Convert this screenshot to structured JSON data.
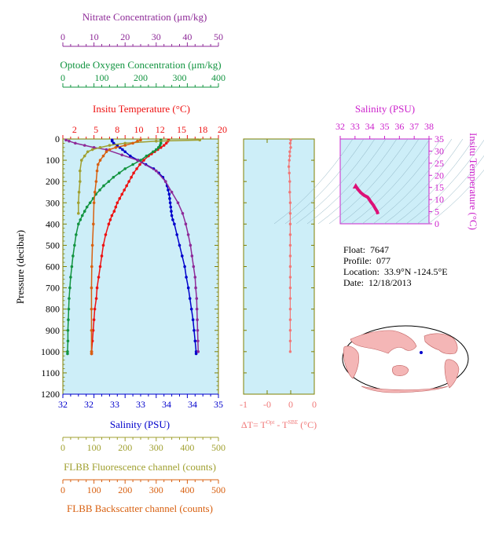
{
  "float_info": {
    "float_label": "Float:",
    "float_value": "7647",
    "profile_label": "Profile:",
    "profile_value": "077",
    "location_label": "Location:",
    "location_value": "33.9°N  -124.5°E",
    "date_label": "Date:",
    "date_value": "12/18/2013"
  },
  "colors": {
    "panel_bg": "#cdeef8",
    "frame": "#808000",
    "temperature": "#ee1111",
    "salinity": "#0000cc",
    "oxygen": "#129440",
    "nitrate": "#8e2a98",
    "fluorescence": "#a0a030",
    "backscatter": "#d86010",
    "delta_t": "#f07878",
    "ts_frame": "#cc22cc",
    "ts_line": "#dd1177"
  },
  "chart_data": [
    {
      "type": "line",
      "title": "",
      "ylabel": "Pressure (decibar)",
      "ylim": [
        1200,
        0
      ],
      "yticks": [
        0,
        100,
        200,
        300,
        400,
        500,
        600,
        700,
        800,
        900,
        1000,
        1100,
        1200
      ],
      "axes": {
        "nitrate": {
          "label": "Nitrate Concentration (μm/kg)",
          "range": [
            0,
            50
          ],
          "ticks": [
            0,
            10,
            20,
            30,
            40,
            50
          ],
          "position": "top"
        },
        "oxygen": {
          "label": "Optode Oxygen Concentration (μm/kg)",
          "range": [
            0,
            400
          ],
          "ticks": [
            0,
            100,
            200,
            300,
            400
          ],
          "position": "top"
        },
        "temperature": {
          "label": "Insitu Temperature (°C)",
          "range": [
            0,
            20
          ],
          "ticks": [
            2,
            5,
            8,
            10,
            12,
            15,
            18,
            20
          ],
          "tick_positions": [
            1.5,
            4.25,
            7,
            9.75,
            12.5,
            15.25,
            18,
            20.5
          ],
          "position": "top"
        },
        "salinity": {
          "label": "Salinity (PSU)",
          "range": [
            32,
            35
          ],
          "ticks": [
            32,
            32.5,
            33,
            33.5,
            34,
            34.5,
            35
          ],
          "tick_labels": [
            "32",
            "32",
            "33",
            "33",
            "34",
            "34",
            "35"
          ],
          "position": "bottom"
        },
        "fluorescence": {
          "label": "FLBB Fluorescence channel (counts)",
          "range": [
            0,
            500
          ],
          "ticks": [
            0,
            100,
            200,
            300,
            400,
            500
          ],
          "position": "bottom"
        },
        "backscatter": {
          "label": "FLBB Backscatter channel (counts)",
          "range": [
            0,
            500
          ],
          "ticks": [
            0,
            100,
            200,
            300,
            400,
            500
          ],
          "position": "bottom"
        }
      },
      "series": [
        {
          "name": "Insitu Temperature",
          "axis": "temperature",
          "color": "#ee1111",
          "pressure": [
            5,
            10,
            20,
            30,
            40,
            50,
            60,
            70,
            80,
            100,
            120,
            140,
            160,
            180,
            200,
            220,
            240,
            260,
            280,
            300,
            320,
            340,
            360,
            380,
            400,
            450,
            500,
            550,
            600,
            650,
            700,
            750,
            800,
            850,
            900,
            950,
            1000,
            1010
          ],
          "values": [
            13.6,
            13.5,
            13.3,
            13.0,
            12.6,
            12.2,
            11.8,
            11.4,
            11.0,
            10.4,
            9.9,
            9.5,
            9.1,
            8.8,
            8.5,
            8.2,
            7.9,
            7.6,
            7.3,
            7.0,
            6.8,
            6.6,
            6.3,
            6.1,
            5.9,
            5.5,
            5.2,
            5.0,
            4.8,
            4.6,
            4.4,
            4.3,
            4.1,
            4.0,
            3.9,
            3.8,
            3.7,
            3.7
          ]
        },
        {
          "name": "Salinity",
          "axis": "salinity",
          "color": "#0000cc",
          "pressure": [
            5,
            10,
            20,
            30,
            40,
            50,
            60,
            80,
            100,
            120,
            140,
            160,
            180,
            200,
            220,
            240,
            260,
            280,
            300,
            320,
            340,
            360,
            380,
            400,
            450,
            500,
            550,
            600,
            650,
            700,
            750,
            800,
            850,
            900,
            950,
            1000,
            1010
          ],
          "values": [
            32.95,
            32.95,
            32.98,
            33.05,
            33.1,
            33.15,
            33.2,
            33.3,
            33.45,
            33.6,
            33.75,
            33.85,
            33.93,
            33.98,
            34.01,
            34.03,
            34.05,
            34.06,
            34.07,
            34.08,
            34.09,
            34.1,
            34.12,
            34.15,
            34.2,
            34.25,
            34.3,
            34.35,
            34.38,
            34.42,
            34.45,
            34.48,
            34.51,
            34.53,
            34.55,
            34.57,
            34.57
          ]
        },
        {
          "name": "Optode Oxygen",
          "axis": "oxygen",
          "color": "#129440",
          "pressure": [
            5,
            10,
            20,
            30,
            40,
            50,
            60,
            80,
            100,
            120,
            140,
            160,
            180,
            200,
            220,
            240,
            260,
            280,
            300,
            320,
            340,
            360,
            380,
            400,
            450,
            500,
            550,
            600,
            650,
            700,
            750,
            800,
            850,
            900,
            950,
            1000,
            1010
          ],
          "values": [
            252,
            252,
            252,
            250,
            246,
            240,
            232,
            215,
            200,
            180,
            160,
            145,
            130,
            118,
            105,
            95,
            85,
            78,
            70,
            62,
            56,
            50,
            45,
            40,
            34,
            30,
            26,
            23,
            20,
            18,
            16,
            15,
            14,
            13,
            13,
            12,
            12
          ]
        },
        {
          "name": "Nitrate",
          "axis": "nitrate",
          "color": "#8e2a98",
          "pressure": [
            5,
            10,
            20,
            30,
            40,
            50,
            75,
            100,
            150,
            200,
            250,
            300,
            350,
            400,
            450,
            500,
            550,
            600,
            650,
            700,
            750,
            800,
            850,
            900,
            950,
            1000
          ],
          "values": [
            1,
            2,
            4,
            7,
            10,
            14,
            19,
            24,
            30,
            33,
            35,
            37,
            38.5,
            39.5,
            40.3,
            41,
            41.5,
            42,
            42.5,
            42.7,
            43,
            43.1,
            43.2,
            43.3,
            43.4,
            43.5
          ]
        },
        {
          "name": "FLBB Fluorescence",
          "axis": "fluorescence",
          "color": "#a0a030",
          "pressure": [
            5,
            10,
            20,
            30,
            40,
            50,
            60,
            80,
            100,
            150,
            200,
            250,
            300,
            350
          ],
          "values": [
            440,
            300,
            200,
            150,
            120,
            95,
            80,
            70,
            60,
            55,
            55,
            52,
            50,
            50
          ]
        },
        {
          "name": "FLBB Backscatter",
          "axis": "backscatter",
          "color": "#d86010",
          "pressure": [
            5,
            10,
            20,
            30,
            40,
            50,
            60,
            80,
            100,
            120,
            150,
            200,
            250,
            300,
            400,
            500,
            600,
            700,
            800,
            900,
            1000,
            1010
          ],
          "values": [
            250,
            240,
            225,
            200,
            170,
            150,
            140,
            130,
            120,
            113,
            110,
            107,
            103,
            100,
            98,
            95,
            93,
            92,
            92,
            92,
            92,
            92
          ]
        }
      ]
    },
    {
      "type": "scatter",
      "title": "",
      "xlabel": "ΔT= T^Opt - T^SBE (°C)",
      "xlim": [
        -1,
        0.5
      ],
      "xticks": [
        -1,
        -0.5,
        0,
        0.5
      ],
      "xtick_labels": [
        "-1",
        "-0",
        "0",
        "0"
      ],
      "ylim": [
        1200,
        0
      ],
      "series": [
        {
          "name": "ΔT",
          "color": "#f07878",
          "pressure": [
            5,
            20,
            40,
            60,
            80,
            100,
            130,
            160,
            200,
            250,
            300,
            350,
            400,
            450,
            500,
            550,
            600,
            650,
            700,
            750,
            800,
            850,
            900,
            950,
            1000
          ],
          "values": [
            0.0,
            -0.01,
            0.0,
            -0.02,
            -0.02,
            -0.03,
            -0.04,
            -0.03,
            -0.02,
            -0.02,
            -0.01,
            -0.01,
            -0.01,
            -0.01,
            -0.01,
            -0.01,
            -0.01,
            -0.01,
            -0.01,
            -0.01,
            -0.01,
            -0.01,
            -0.01,
            -0.01,
            -0.01
          ]
        }
      ]
    },
    {
      "type": "line",
      "title": "Salinity (PSU)",
      "xlabel": "Salinity (PSU)",
      "ylabel": "Insitu Temperature (°C)",
      "xlim": [
        32,
        38
      ],
      "xticks": [
        32,
        33,
        34,
        35,
        36,
        37,
        38
      ],
      "ylim": [
        0,
        35
      ],
      "yticks": [
        0,
        5,
        10,
        15,
        20,
        25,
        30,
        35
      ],
      "series": [
        {
          "name": "T-S",
          "color": "#dd1177",
          "salinity": [
            33.05,
            33.2,
            33.4,
            33.6,
            33.85,
            33.95,
            34.05,
            34.15,
            34.25,
            34.35,
            34.5,
            34.55
          ],
          "temperature": [
            15.5,
            14.2,
            12.8,
            11.8,
            11.0,
            10.2,
            9.2,
            8.4,
            7.6,
            6.5,
            5.0,
            4.0
          ]
        }
      ]
    }
  ]
}
